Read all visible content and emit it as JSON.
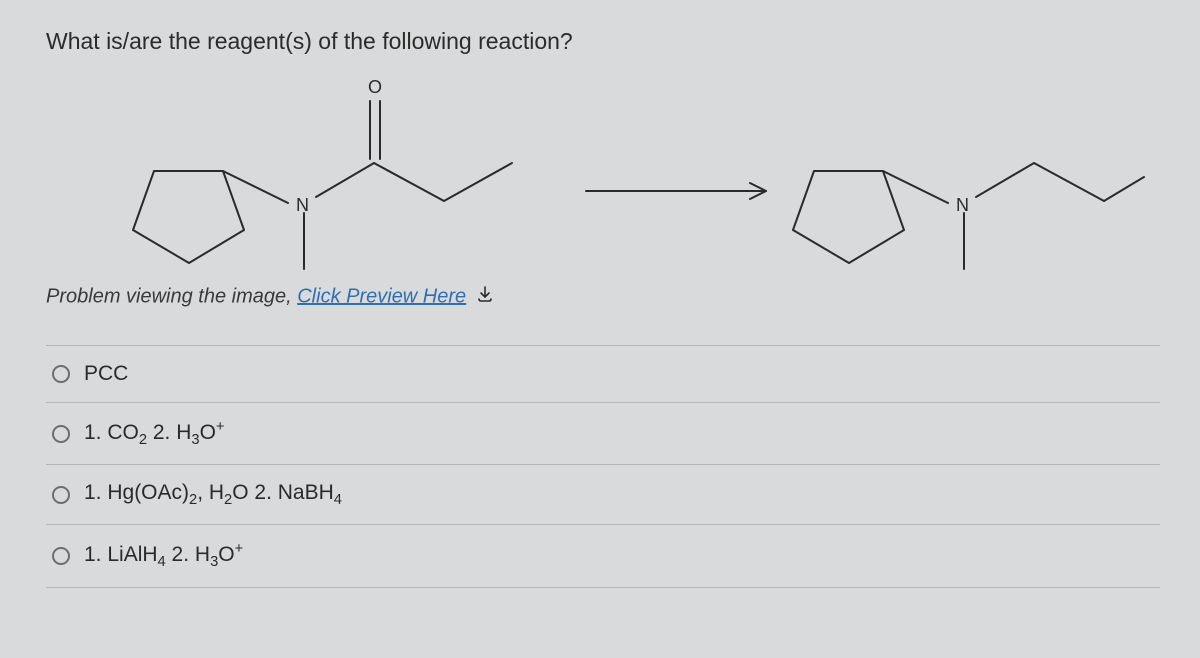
{
  "question_text": "What is/are the reagent(s) of the following reaction?",
  "preview_prefix": "Problem viewing the image, ",
  "preview_link_text": "Click Preview Here",
  "diagram": {
    "stroke_color": "#2a2a2a",
    "stroke_width": 2,
    "label_color": "#2a2a2a",
    "label_fontsize": 18,
    "atoms": {
      "O": "O",
      "N": "N"
    },
    "background": "#d8dadb"
  },
  "options": [
    {
      "id": "opt-pcc",
      "html": "PCC"
    },
    {
      "id": "opt-co2",
      "html": "1. CO<sub>2</sub> 2. H<sub>3</sub>O<sup>+</sup>"
    },
    {
      "id": "opt-hgoac",
      "html": "1. Hg(OAc)<sub>2</sub>, H<sub>2</sub>O 2. NaBH<sub>4</sub>"
    },
    {
      "id": "opt-lialh",
      "html": "1. LiAlH<sub>4</sub> 2. H<sub>3</sub>O<sup>+</sup>"
    }
  ],
  "colors": {
    "page_bg": "#d8dadb",
    "text": "#2a2a2a",
    "link": "#2f6fb0",
    "divider": "#b4b8ba",
    "radio_border": "#6a6e70"
  },
  "typography": {
    "question_fontsize": 23,
    "option_fontsize": 21,
    "preview_fontsize": 20,
    "font_family": "Arial"
  }
}
